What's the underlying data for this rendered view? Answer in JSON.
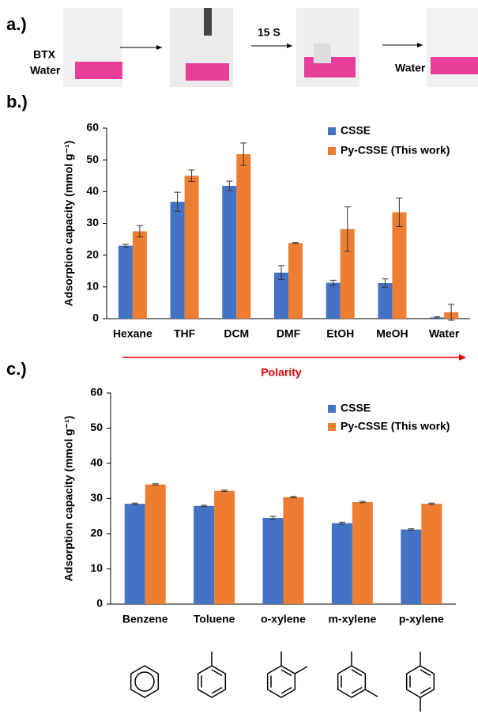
{
  "panel_a": {
    "label": "a.)",
    "left_labels": [
      "BTX",
      "Water"
    ],
    "arrow_label": "15 S",
    "right_label": "Water"
  },
  "chart_data": [
    {
      "type": "bar",
      "panel_label": "b.)",
      "y_label": "Adsorption capacity (mmol g⁻¹)",
      "categories": [
        "Hexane",
        "THF",
        "DCM",
        "DMF",
        "EtOH",
        "MeOH",
        "Water"
      ],
      "series": [
        {
          "name": "CSSE",
          "color": "#4472c4",
          "values": [
            23,
            36.8,
            41.8,
            14.5,
            11.3,
            11.2,
            0.4
          ],
          "errors": [
            0.4,
            3,
            1.5,
            2.2,
            0.8,
            1.3,
            0.2
          ]
        },
        {
          "name": "Py-CSSE (This work)",
          "color": "#ed7d31",
          "values": [
            27.5,
            45,
            51.8,
            23.8,
            28.2,
            33.5,
            2
          ],
          "errors": [
            1.8,
            1.8,
            3.5,
            0.2,
            7,
            4.5,
            2.5
          ]
        }
      ],
      "ylim": [
        0,
        60
      ],
      "yticks": [
        0,
        10,
        20,
        30,
        40,
        50,
        60
      ],
      "annotation": "Polarity"
    },
    {
      "type": "bar",
      "panel_label": "c.)",
      "y_label": "Adsorption capacity (mmol g⁻¹)",
      "categories": [
        "Benzene",
        "Toluene",
        "o-xylene",
        "m-xylene",
        "p-xylene"
      ],
      "series": [
        {
          "name": "CSSE",
          "color": "#4472c4",
          "values": [
            28.5,
            27.9,
            24.5,
            23,
            21.2
          ],
          "errors": [
            0.2,
            0.2,
            0.4,
            0.3,
            0.2
          ]
        },
        {
          "name": "Py-CSSE (This work)",
          "color": "#ed7d31",
          "values": [
            34,
            32.2,
            30.4,
            29,
            28.5
          ],
          "errors": [
            0.2,
            0.2,
            0.2,
            0.2,
            0.2
          ]
        }
      ],
      "ylim": [
        0,
        60
      ],
      "yticks": [
        0,
        10,
        20,
        30,
        40,
        50,
        60
      ]
    }
  ]
}
